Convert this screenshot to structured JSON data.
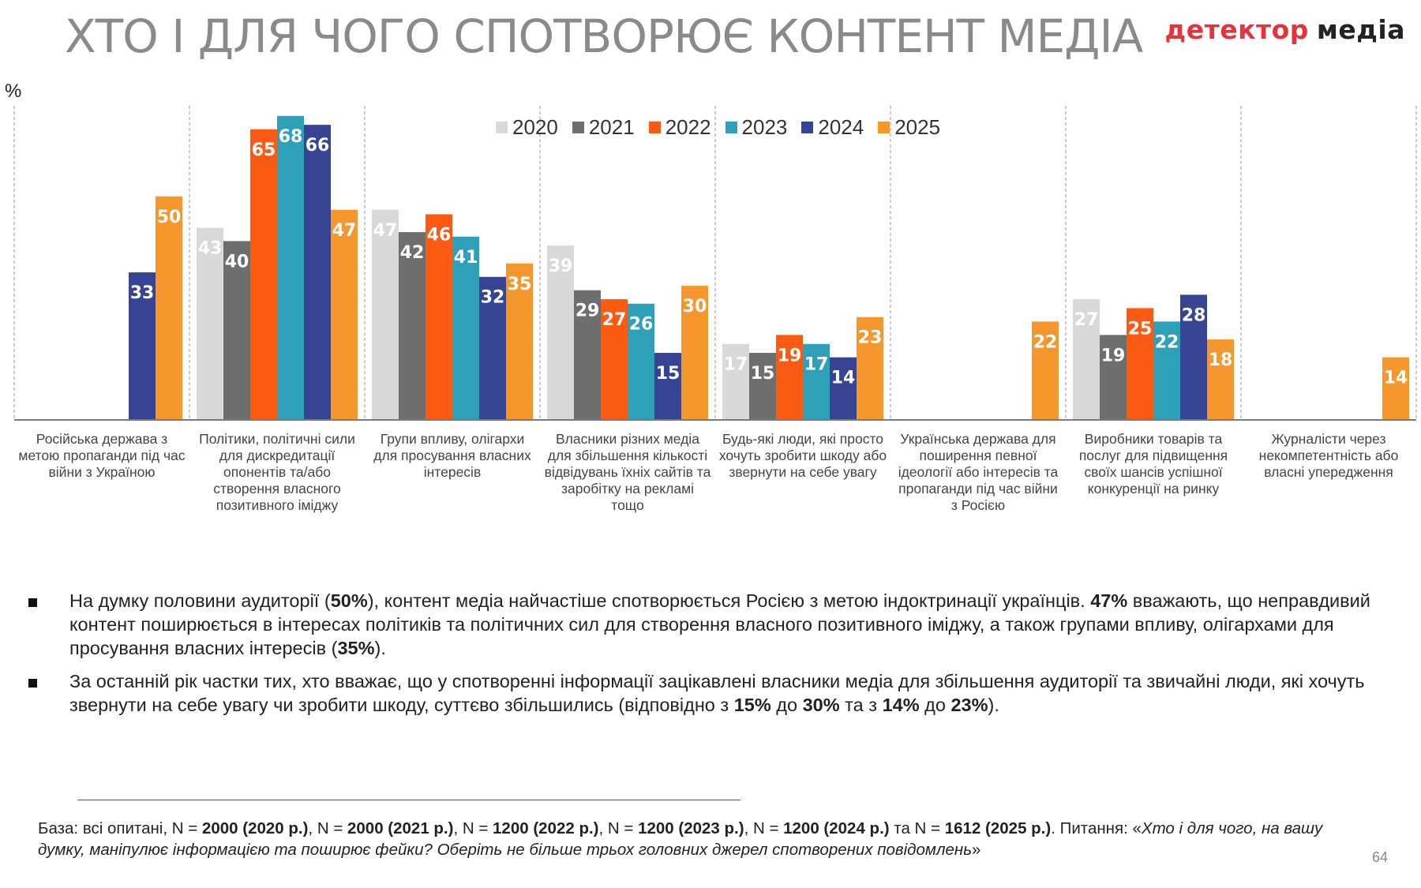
{
  "title": "ХТО І ДЛЯ ЧОГО СПОТВОРЮЄ КОНТЕНТ МЕДІА",
  "logo": {
    "part1": "детектор",
    "part2": "медіа",
    "color1": "#e5333b",
    "color2": "#222222"
  },
  "unit": "%",
  "chart_data": {
    "type": "bar",
    "ylabel": "%",
    "ylim": [
      0,
      70
    ],
    "grid": false,
    "legend_position": "top-center",
    "series": [
      {
        "name": "2020",
        "color": "#d9d9d9",
        "values": [
          null,
          43,
          47,
          39,
          17,
          null,
          27,
          null
        ]
      },
      {
        "name": "2021",
        "color": "#6e6e6e",
        "values": [
          null,
          40,
          42,
          29,
          15,
          null,
          19,
          null
        ]
      },
      {
        "name": "2022",
        "color": "#fb5a13",
        "values": [
          null,
          65,
          46,
          27,
          19,
          null,
          25,
          null
        ]
      },
      {
        "name": "2023",
        "color": "#2ea1b9",
        "values": [
          null,
          68,
          41,
          26,
          17,
          null,
          22,
          null
        ]
      },
      {
        "name": "2024",
        "color": "#374493",
        "values": [
          33,
          66,
          32,
          15,
          14,
          null,
          28,
          null
        ]
      },
      {
        "name": "2025",
        "color": "#f6972d",
        "values": [
          50,
          47,
          35,
          30,
          23,
          22,
          18,
          14
        ]
      }
    ],
    "categories": [
      "Російська держава з метою пропаганди під час війни з Україною",
      "Політики, політичні сили для дискредитації опонентів та/або створення власного позитивного іміджу",
      "Групи впливу, олігархи для просування власних інтересів",
      "Власники різних медіа для збільшення кількості відвідувань їхніх сайтів та заробітку на рекламі тощо",
      "Будь-які люди, які просто хочуть зробити шкоду або звернути на себе увагу",
      "Українська держава для поширення певної ідеології або інтересів та пропаганди під час війни з Росією",
      "Виробники товарів та послуг для підвищення своїх шансів успішної конкуренції на ринку",
      "Журналісти через некомпетентність або власні упередження"
    ]
  },
  "bullets": [
    {
      "p1": "На думку половини аудиторії (",
      "b1": "50%",
      "p2": "), контент медіа найчастіше спотворюється Росією з метою індоктринації українців. ",
      "b2": "47%",
      "p3": " вважають, що неправдивий контент поширюється в інтересах політиків та політичних сил для створення власного позитивного іміджу, а також групами впливу, олігархами для просування власних інтересів (",
      "b3": "35%",
      "p4": ")."
    },
    {
      "p1": "За останній рік частки тих, хто вважає, що у спотворенні інформації зацікавлені власники медіа для збільшення аудиторії та звичайні люди, які хочуть звернути на себе увагу чи зробити шкоду, суттєво збільшились (відповідно з ",
      "b1": "15%",
      "p2": " до ",
      "b2": "30%",
      "p3": " та з ",
      "b3": "14%",
      "p4": " до ",
      "b4": "23%",
      "p5": ")."
    }
  ],
  "footnote": {
    "t1": "База: всі опитані, N = ",
    "b1": "2000 (2020 р.)",
    "t2": ", N = ",
    "b2": "2000 (2021 р.)",
    "t3": ", N = ",
    "b3": "1200 (2022 р.)",
    "t4": ", N = ",
    "b4": "1200 (2023 р.)",
    "t5": ", N = ",
    "b5": "1200 (2024 р.)",
    "t6": " та N = ",
    "b6": "1612 (2025 р.)",
    "t7": ". Питання: «",
    "i1": "Хто і для чого, на вашу думку, маніпулює інформацією та поширює фейки? Оберіть не більше трьох головних джерел спотворених повідомлень",
    "t8": "»"
  },
  "page_number": "64"
}
